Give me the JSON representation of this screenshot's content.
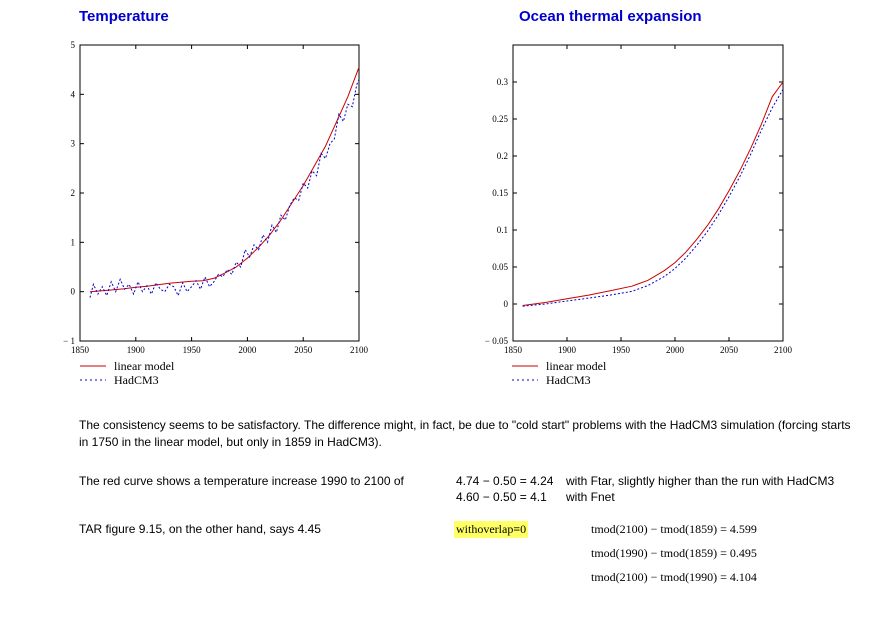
{
  "chart_data": [
    {
      "type": "line",
      "title": "Temperature",
      "xlim": [
        1850,
        2100
      ],
      "ylim": [
        -1,
        5
      ],
      "xticks": [
        "1850",
        "1900",
        "1950",
        "2000",
        "2050",
        "2100"
      ],
      "yticks": [
        "-1",
        "0",
        "1",
        "2",
        "3",
        "4",
        "5"
      ],
      "series": [
        {
          "name": "linear model",
          "color": "#cc0000",
          "style": "solid",
          "x": [
            1859,
            1870,
            1880,
            1890,
            1900,
            1910,
            1920,
            1930,
            1940,
            1950,
            1960,
            1970,
            1980,
            1990,
            2000,
            2010,
            2020,
            2030,
            2040,
            2050,
            2060,
            2070,
            2080,
            2090,
            2100
          ],
          "y": [
            0.0,
            0.02,
            0.04,
            0.06,
            0.09,
            0.11,
            0.14,
            0.17,
            0.19,
            0.21,
            0.22,
            0.27,
            0.38,
            0.5,
            0.68,
            0.9,
            1.15,
            1.45,
            1.8,
            2.15,
            2.55,
            2.95,
            3.45,
            3.95,
            4.55
          ]
        },
        {
          "name": "HadCM3",
          "color": "#0000cc",
          "style": "dotted",
          "x": [
            1859,
            1862,
            1866,
            1870,
            1874,
            1878,
            1882,
            1886,
            1890,
            1894,
            1898,
            1902,
            1906,
            1910,
            1914,
            1918,
            1922,
            1926,
            1930,
            1934,
            1938,
            1942,
            1946,
            1950,
            1954,
            1958,
            1962,
            1966,
            1970,
            1974,
            1978,
            1982,
            1986,
            1990,
            1994,
            1998,
            2002,
            2006,
            2010,
            2014,
            2018,
            2022,
            2026,
            2030,
            2034,
            2038,
            2042,
            2046,
            2050,
            2054,
            2058,
            2062,
            2066,
            2070,
            2074,
            2078,
            2082,
            2086,
            2090,
            2094,
            2098,
            2100
          ],
          "y": [
            -0.12,
            0.15,
            -0.05,
            0.1,
            -0.08,
            0.2,
            0.0,
            0.25,
            0.05,
            0.15,
            -0.05,
            0.2,
            0.0,
            0.12,
            -0.05,
            0.18,
            0.05,
            0.0,
            0.15,
            0.1,
            -0.08,
            0.18,
            0.0,
            0.1,
            0.22,
            0.05,
            0.3,
            0.1,
            0.2,
            0.35,
            0.3,
            0.45,
            0.35,
            0.6,
            0.5,
            0.85,
            0.7,
            0.95,
            0.85,
            1.15,
            1.0,
            1.35,
            1.2,
            1.55,
            1.45,
            1.75,
            1.9,
            1.85,
            2.2,
            2.1,
            2.45,
            2.35,
            2.8,
            2.7,
            3.0,
            3.1,
            3.6,
            3.45,
            3.8,
            3.75,
            4.2,
            4.3
          ]
        }
      ]
    },
    {
      "type": "line",
      "title": "Ocean thermal expansion",
      "xlim": [
        1850,
        2100
      ],
      "ylim": [
        -0.05,
        0.35
      ],
      "xticks": [
        "1850",
        "1900",
        "1950",
        "2000",
        "2050",
        "2100"
      ],
      "yticks": [
        "-0.05",
        "0",
        "0.05",
        "0.1",
        "0.15",
        "0.2",
        "0.25",
        "0.3"
      ],
      "series": [
        {
          "name": "linear model",
          "color": "#cc0000",
          "style": "solid",
          "x": [
            1859,
            1880,
            1900,
            1920,
            1940,
            1960,
            1975,
            1990,
            2000,
            2010,
            2020,
            2030,
            2040,
            2050,
            2060,
            2070,
            2080,
            2090,
            2100
          ],
          "y": [
            -0.002,
            0.002,
            0.007,
            0.012,
            0.018,
            0.024,
            0.032,
            0.045,
            0.056,
            0.07,
            0.087,
            0.106,
            0.128,
            0.153,
            0.18,
            0.21,
            0.243,
            0.28,
            0.3
          ]
        },
        {
          "name": "HadCM3",
          "color": "#0000cc",
          "style": "dotted",
          "x": [
            1859,
            1880,
            1900,
            1920,
            1940,
            1960,
            1975,
            1990,
            2000,
            2010,
            2020,
            2030,
            2040,
            2050,
            2060,
            2070,
            2080,
            2090,
            2100
          ],
          "y": [
            -0.003,
            0.0,
            0.004,
            0.008,
            0.012,
            0.017,
            0.025,
            0.037,
            0.048,
            0.062,
            0.079,
            0.098,
            0.12,
            0.145,
            0.172,
            0.202,
            0.235,
            0.265,
            0.29
          ]
        }
      ]
    }
  ],
  "text": {
    "para1": "The consistency seems to be satisfactory. The difference might, in fact, be due to \"cold start\" problems with the HadCM3 simulation (forcing starts in 1750 in the linear model, but only in 1859 in HadCM3).",
    "para2": "The red curve shows a temperature increase 1990 to 2100 of",
    "calc1": "4.74 − 0.50 = 4.24",
    "calc2": "4.60 − 0.50 = 4.1",
    "note1": "with Ftar, slightly higher than the run with HadCM3",
    "note2": "with Fnet",
    "para3": "TAR figure 9.15, on the other hand, says 4.45",
    "overlap": "withoverlap≡0",
    "eq1": "tmod(2100) − tmod(1859)  = 4.599",
    "eq2": "tmod(1990) − tmod(1859)  = 0.495",
    "eq3": "tmod(2100) − tmod(1990)  = 4.104"
  }
}
